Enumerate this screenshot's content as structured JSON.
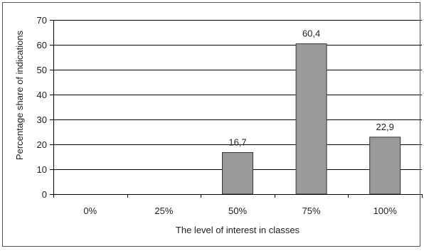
{
  "chart_data": {
    "type": "bar",
    "categories": [
      "0%",
      "25%",
      "50%",
      "75%",
      "100%"
    ],
    "values": [
      0,
      0,
      16.7,
      60.4,
      22.9
    ],
    "data_labels": [
      "",
      "",
      "16,7",
      "60,4",
      "22,9"
    ],
    "xlabel": "The level of interest in classes",
    "ylabel": "Percentage share of indications",
    "ylim": [
      0,
      70
    ],
    "yticks": [
      0,
      10,
      20,
      30,
      40,
      50,
      60,
      70
    ],
    "ytick_labels": [
      "0",
      "10",
      "20",
      "30",
      "40",
      "50",
      "60",
      "70"
    ],
    "grid": true,
    "bar_color": "#9a9a9a",
    "bar_edge_color": "#333333"
  }
}
